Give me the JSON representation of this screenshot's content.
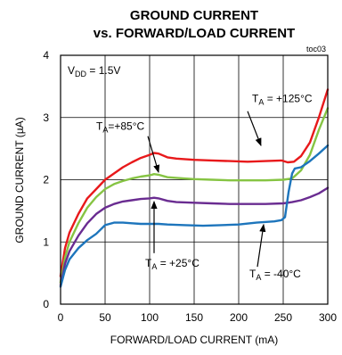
{
  "chart_data": {
    "type": "line",
    "title_line1": "GROUND CURRENT",
    "title_line2": "vs. FORWARD/LOAD CURRENT",
    "figure_code": "toc03",
    "xlabel": "FORWARD/LOAD CURRENT (mA)",
    "ylabel": "GROUND CURRENT (µA)",
    "xlim": [
      0,
      300
    ],
    "ylim": [
      0,
      4
    ],
    "xticks": [
      0,
      50,
      100,
      150,
      200,
      250,
      300
    ],
    "yticks": [
      0,
      1,
      2,
      3,
      4
    ],
    "xtick_labels": [
      "0",
      "50",
      "100",
      "150",
      "200",
      "250",
      "300"
    ],
    "ytick_labels": [
      "0",
      "1",
      "2",
      "3",
      "4"
    ],
    "grid": true,
    "condition": {
      "main": "V",
      "sub": "DD",
      "rest": " = 1.5V"
    },
    "series": [
      {
        "color": "#e8191b",
        "points": [
          [
            0,
            0.45
          ],
          [
            5,
            0.9
          ],
          [
            10,
            1.15
          ],
          [
            20,
            1.45
          ],
          [
            30,
            1.7
          ],
          [
            40,
            1.85
          ],
          [
            50,
            2.0
          ],
          [
            60,
            2.1
          ],
          [
            70,
            2.2
          ],
          [
            80,
            2.28
          ],
          [
            90,
            2.35
          ],
          [
            100,
            2.4
          ],
          [
            105,
            2.43
          ],
          [
            110,
            2.42
          ],
          [
            120,
            2.36
          ],
          [
            130,
            2.34
          ],
          [
            150,
            2.32
          ],
          [
            170,
            2.31
          ],
          [
            190,
            2.3
          ],
          [
            210,
            2.29
          ],
          [
            230,
            2.3
          ],
          [
            248,
            2.31
          ],
          [
            255,
            2.28
          ],
          [
            262,
            2.29
          ],
          [
            270,
            2.38
          ],
          [
            280,
            2.6
          ],
          [
            290,
            3.0
          ],
          [
            300,
            3.45
          ]
        ]
      },
      {
        "color": "#86c443",
        "points": [
          [
            0,
            0.35
          ],
          [
            5,
            0.75
          ],
          [
            10,
            1.0
          ],
          [
            20,
            1.3
          ],
          [
            30,
            1.55
          ],
          [
            40,
            1.72
          ],
          [
            50,
            1.85
          ],
          [
            60,
            1.93
          ],
          [
            70,
            1.98
          ],
          [
            80,
            2.02
          ],
          [
            90,
            2.05
          ],
          [
            100,
            2.07
          ],
          [
            105,
            2.09
          ],
          [
            110,
            2.08
          ],
          [
            120,
            2.04
          ],
          [
            130,
            2.03
          ],
          [
            150,
            2.01
          ],
          [
            170,
            2.0
          ],
          [
            190,
            1.99
          ],
          [
            210,
            1.99
          ],
          [
            230,
            1.99
          ],
          [
            250,
            2.0
          ],
          [
            260,
            2.02
          ],
          [
            270,
            2.15
          ],
          [
            280,
            2.4
          ],
          [
            290,
            2.8
          ],
          [
            300,
            3.15
          ]
        ]
      },
      {
        "color": "#6a2c91",
        "points": [
          [
            0,
            0.3
          ],
          [
            5,
            0.65
          ],
          [
            10,
            0.85
          ],
          [
            20,
            1.1
          ],
          [
            30,
            1.3
          ],
          [
            40,
            1.45
          ],
          [
            50,
            1.55
          ],
          [
            60,
            1.61
          ],
          [
            70,
            1.65
          ],
          [
            80,
            1.67
          ],
          [
            90,
            1.69
          ],
          [
            100,
            1.7
          ],
          [
            105,
            1.71
          ],
          [
            110,
            1.7
          ],
          [
            120,
            1.66
          ],
          [
            130,
            1.64
          ],
          [
            150,
            1.63
          ],
          [
            170,
            1.62
          ],
          [
            190,
            1.61
          ],
          [
            210,
            1.61
          ],
          [
            230,
            1.61
          ],
          [
            250,
            1.62
          ],
          [
            260,
            1.64
          ],
          [
            270,
            1.67
          ],
          [
            280,
            1.72
          ],
          [
            290,
            1.78
          ],
          [
            300,
            1.87
          ]
        ]
      },
      {
        "color": "#1d75bc",
        "points": [
          [
            0,
            0.28
          ],
          [
            5,
            0.55
          ],
          [
            10,
            0.72
          ],
          [
            20,
            0.9
          ],
          [
            30,
            1.03
          ],
          [
            40,
            1.13
          ],
          [
            45,
            1.2
          ],
          [
            50,
            1.27
          ],
          [
            60,
            1.31
          ],
          [
            70,
            1.31
          ],
          [
            80,
            1.3
          ],
          [
            90,
            1.29
          ],
          [
            100,
            1.29
          ],
          [
            110,
            1.29
          ],
          [
            120,
            1.28
          ],
          [
            140,
            1.27
          ],
          [
            160,
            1.26
          ],
          [
            180,
            1.27
          ],
          [
            200,
            1.28
          ],
          [
            220,
            1.31
          ],
          [
            240,
            1.33
          ],
          [
            248,
            1.35
          ],
          [
            252,
            1.4
          ],
          [
            256,
            1.8
          ],
          [
            260,
            2.1
          ],
          [
            263,
            2.18
          ],
          [
            270,
            2.2
          ],
          [
            280,
            2.3
          ],
          [
            290,
            2.42
          ],
          [
            300,
            2.55
          ]
        ]
      }
    ],
    "annotations": [
      {
        "main": "T",
        "sub": "A",
        "rest": " = +125°C",
        "lx": 215,
        "ly": 3.25,
        "arrow": [
          [
            210,
            3.1
          ],
          [
            225,
            2.55
          ]
        ]
      },
      {
        "main": "T",
        "sub": "A",
        "rest": "=+85°C",
        "lx": 40,
        "ly": 2.8,
        "arrow": [
          [
            98,
            2.7
          ],
          [
            110,
            2.12
          ]
        ]
      },
      {
        "main": "T",
        "sub": "A",
        "rest": " = +25°C",
        "lx": 95,
        "ly": 0.6,
        "arrow": [
          [
            105,
            0.82
          ],
          [
            105,
            1.65
          ]
        ]
      },
      {
        "main": "T",
        "sub": "A",
        "rest": " = -40°C",
        "lx": 212,
        "ly": 0.43,
        "arrow": [
          [
            221,
            0.6
          ],
          [
            228,
            1.28
          ]
        ]
      }
    ]
  }
}
